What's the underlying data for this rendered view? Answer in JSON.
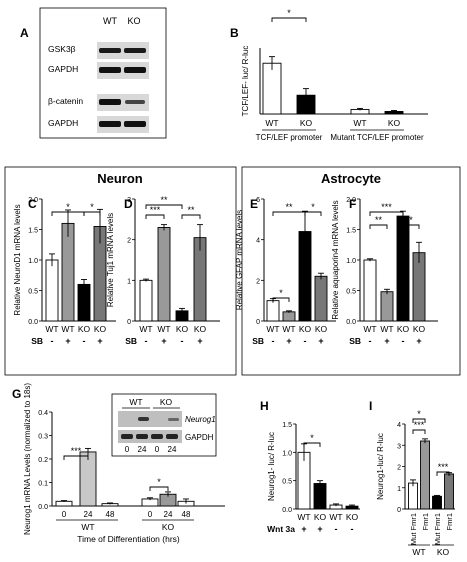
{
  "figure": {
    "panel_letters": [
      "A",
      "B",
      "C",
      "D",
      "E",
      "F",
      "G",
      "H",
      "I"
    ],
    "section_neuron": "Neuron",
    "section_astrocyte": "Astrocyte",
    "wt": "WT",
    "ko": "KO"
  },
  "panel_a": {
    "col_labels": [
      "WT",
      "KO"
    ],
    "rows": [
      "GSK3β",
      "GAPDH",
      "β-catenin",
      "GAPDH"
    ]
  },
  "panel_g_blot": {
    "col_labels": [
      "WT",
      "KO"
    ],
    "lane_labels": [
      "0",
      "24",
      "0",
      "24"
    ],
    "rows": [
      "Neurog1",
      "GAPDH"
    ]
  },
  "chart_data": [
    {
      "panel": "B",
      "type": "bar",
      "ylabel": "TCF/LEF- luc/ R-luc",
      "categories": [
        "WT",
        "KO",
        "WT",
        "KO"
      ],
      "values": [
        1.0,
        0.37,
        0.09,
        0.05
      ],
      "errors": [
        0.13,
        0.13,
        0.02,
        0.02
      ],
      "fills": [
        "#ffffff",
        "#000000",
        "#ffffff",
        "#000000"
      ],
      "groups": [
        "TCF/LEF promoter",
        "Mutant TCF/LEF promoter"
      ],
      "sig": [
        {
          "label": "*"
        }
      ],
      "ylim": [
        0,
        1.3
      ]
    },
    {
      "panel": "C",
      "type": "bar",
      "ylabel": "Relative NeuroD1 mRNA levels",
      "categories": [
        "WT",
        "WT",
        "KO",
        "KO"
      ],
      "treatment_label": "SB",
      "treatment": [
        "-",
        "+",
        "-",
        "+"
      ],
      "values": [
        1.0,
        1.6,
        0.6,
        1.55
      ],
      "errors": [
        0.1,
        0.22,
        0.08,
        0.28
      ],
      "fills": [
        "#ffffff",
        "#999999",
        "#000000",
        "#777777"
      ],
      "yticks": [
        "0.0",
        "0.5",
        "1.0",
        "1.5",
        "2.0"
      ],
      "sig": [
        {
          "label": "*"
        },
        {
          "label": "*"
        }
      ],
      "ylim": [
        0,
        2.0
      ]
    },
    {
      "panel": "D",
      "type": "bar",
      "ylabel": "Relative Tuj1 mRNA levels",
      "categories": [
        "WT",
        "WT",
        "KO",
        "KO"
      ],
      "treatment_label": "SB",
      "treatment": [
        "-",
        "+",
        "-",
        "+"
      ],
      "values": [
        1.0,
        2.3,
        0.25,
        2.05
      ],
      "errors": [
        0.03,
        0.07,
        0.06,
        0.32
      ],
      "fills": [
        "#ffffff",
        "#999999",
        "#000000",
        "#777777"
      ],
      "yticks": [
        "0",
        "1",
        "2",
        "3"
      ],
      "sig": [
        {
          "label": "**"
        },
        {
          "label": "***"
        },
        {
          "label": "**"
        }
      ],
      "ylim": [
        0,
        3
      ]
    },
    {
      "panel": "E",
      "type": "bar",
      "ylabel": "Relative GFAP mRNA levels",
      "categories": [
        "WT",
        "WT",
        "KO",
        "KO"
      ],
      "treatment_label": "SB",
      "treatment": [
        "-",
        "+",
        "-",
        "+"
      ],
      "values": [
        1.0,
        0.45,
        4.4,
        2.2
      ],
      "errors": [
        0.1,
        0.05,
        1.0,
        0.15
      ],
      "fills": [
        "#ffffff",
        "#999999",
        "#000000",
        "#777777"
      ],
      "yticks": [
        "0",
        "2",
        "4",
        "6"
      ],
      "sig": [
        {
          "label": "**"
        },
        {
          "label": "*"
        },
        {
          "label": "*"
        }
      ],
      "ylim": [
        0,
        6
      ]
    },
    {
      "panel": "F",
      "type": "bar",
      "ylabel": "Relative aquaporin4 mRNA levels",
      "categories": [
        "WT",
        "WT",
        "KO",
        "KO"
      ],
      "treatment_label": "SB",
      "treatment": [
        "-",
        "+",
        "-",
        "+"
      ],
      "values": [
        1.0,
        0.48,
        1.72,
        1.12
      ],
      "errors": [
        0.02,
        0.04,
        0.08,
        0.17
      ],
      "fills": [
        "#ffffff",
        "#999999",
        "#000000",
        "#777777"
      ],
      "yticks": [
        "0.0",
        "0.5",
        "1.0",
        "1.5",
        "2.0"
      ],
      "sig": [
        {
          "label": "***"
        },
        {
          "label": "**"
        },
        {
          "label": "*"
        }
      ],
      "ylim": [
        0,
        2.0
      ]
    },
    {
      "panel": "G",
      "type": "bar",
      "ylabel": "Neurog1 mRNA Levels (normalized to 18s)",
      "xlabel": "Time of Differentiation (hrs)",
      "categories": [
        "0",
        "24",
        "48",
        "0",
        "24",
        "48"
      ],
      "groups": [
        "WT",
        "KO"
      ],
      "values": [
        0.02,
        0.23,
        0.01,
        0.03,
        0.05,
        0.02
      ],
      "errors": [
        0.003,
        0.015,
        0.003,
        0.005,
        0.01,
        0.01
      ],
      "fills": [
        "#ffffff",
        "#c8c8c8",
        "#ffffff",
        "#ffffff",
        "#999999",
        "#ffffff"
      ],
      "yticks": [
        "0.0",
        "0.1",
        "0.2",
        "0.3",
        "0.4"
      ],
      "sig": [
        {
          "label": "***"
        },
        {
          "label": "*"
        }
      ],
      "ylim": [
        0,
        0.4
      ]
    },
    {
      "panel": "H",
      "type": "bar",
      "ylabel": "Neurog1- luc/ R-luc",
      "categories": [
        "WT",
        "KO",
        "WT",
        "KO"
      ],
      "treatment_label": "Wnt 3a",
      "treatment": [
        "+",
        "+",
        "-",
        "-"
      ],
      "values": [
        1.0,
        0.45,
        0.07,
        0.05
      ],
      "errors": [
        0.15,
        0.05,
        0.02,
        0.02
      ],
      "fills": [
        "#ffffff",
        "#000000",
        "#ffffff",
        "#000000"
      ],
      "yticks": [
        "0.0",
        "0.5",
        "1.0",
        "1.5"
      ],
      "sig": [
        {
          "label": "*"
        }
      ],
      "ylim": [
        0,
        1.5
      ]
    },
    {
      "panel": "I",
      "type": "bar",
      "ylabel": "Neurog1-luc/ R-luc",
      "categories": [
        "Mut Fmr1",
        "Fmr1",
        "Mut Fmr1",
        "Fmr1"
      ],
      "groups": [
        "WT",
        "KO"
      ],
      "values": [
        1.22,
        3.2,
        0.6,
        1.65
      ],
      "errors": [
        0.15,
        0.1,
        0.04,
        0.06
      ],
      "fills": [
        "#ffffff",
        "#999999",
        "#000000",
        "#777777"
      ],
      "yticks": [
        "0",
        "1",
        "2",
        "3",
        "4"
      ],
      "sig": [
        {
          "label": "*"
        },
        {
          "label": "***"
        },
        {
          "label": "***"
        }
      ],
      "ylim": [
        0,
        4
      ]
    }
  ]
}
